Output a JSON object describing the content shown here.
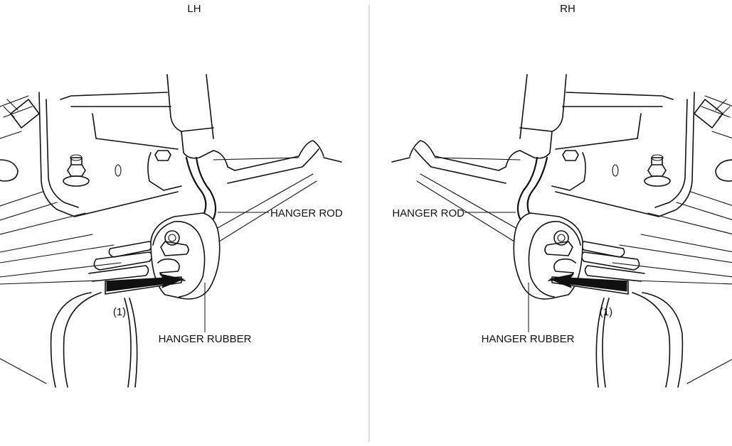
{
  "panels": {
    "left": {
      "title": "LH",
      "label_rod": "HANGER ROD",
      "label_rubber": "HANGER RUBBER",
      "label_step": "(1)"
    },
    "right": {
      "title": "RH",
      "label_rod": "HANGER ROD",
      "label_rubber": "HANGER RUBBER",
      "label_step": "(1)"
    }
  },
  "colors": {
    "line": "#111111",
    "divider": "#bbbbbb",
    "background": "#ffffff"
  }
}
